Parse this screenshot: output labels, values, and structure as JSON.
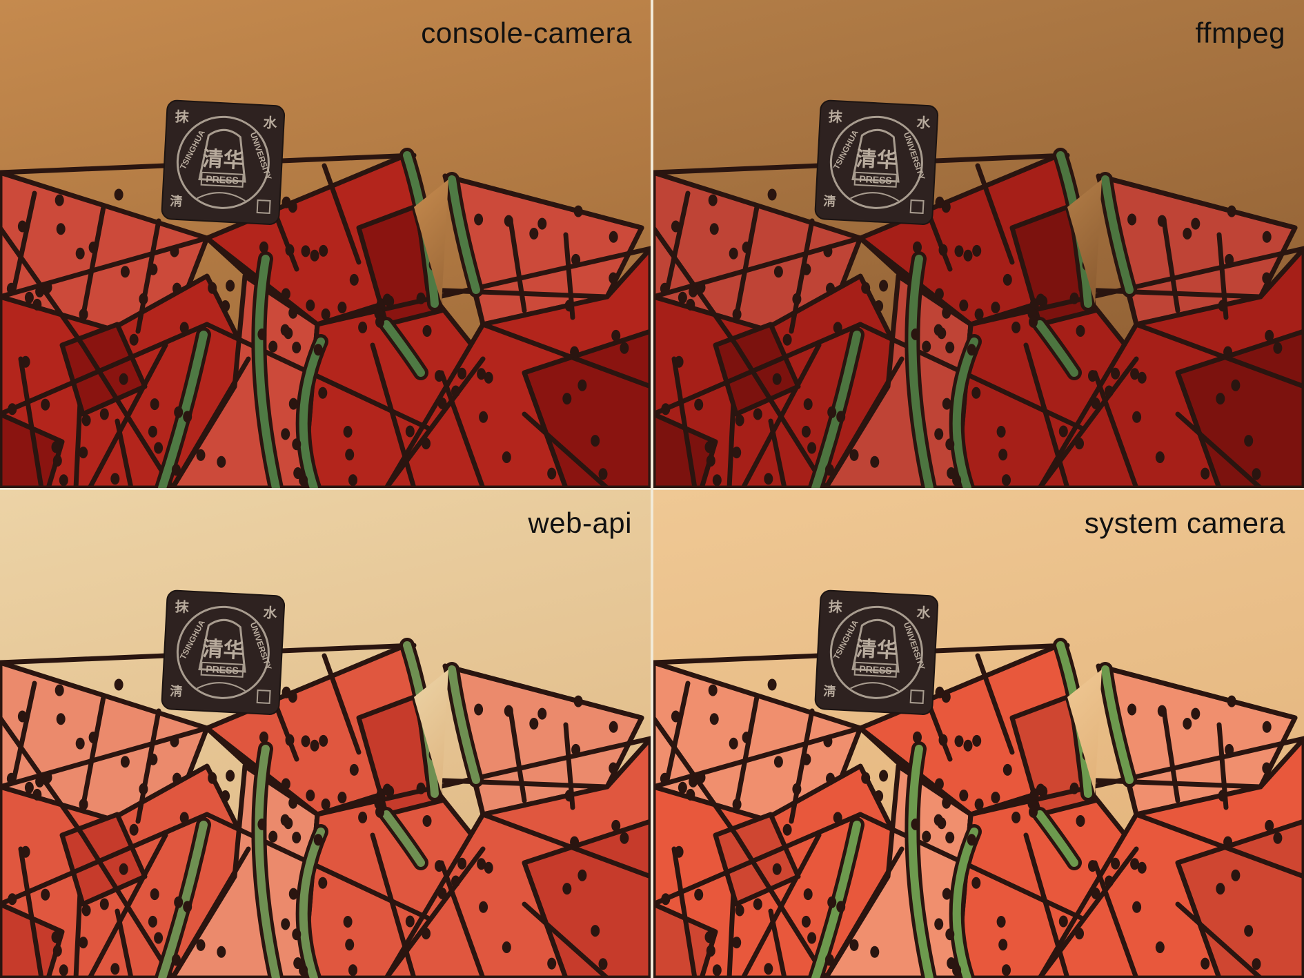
{
  "panels": [
    {
      "label": "console-camera",
      "colors": {
        "bg1": "#c58a4e",
        "bg2": "#a06c3a",
        "red": "#b3251c",
        "light": "#cc4a3a",
        "dark": "#8a1410",
        "rind": "#4f7a44",
        "ink": "#2a1510"
      }
    },
    {
      "label": "ffmpeg",
      "colors": {
        "bg1": "#b27d47",
        "bg2": "#8f5f33",
        "red": "#a61f18",
        "light": "#bf4436",
        "dark": "#7c120e",
        "rind": "#4d7540",
        "ink": "#2a1510"
      }
    },
    {
      "label": "web-api",
      "colors": {
        "bg1": "#ecd3a6",
        "bg2": "#e0b985",
        "red": "#e0573f",
        "light": "#eb8a6c",
        "dark": "#c63b2b",
        "rind": "#6f9052",
        "ink": "#2a1510"
      }
    },
    {
      "label": "system camera",
      "colors": {
        "bg1": "#efc894",
        "bg2": "#e3b47c",
        "red": "#e8583c",
        "light": "#f08f6e",
        "dark": "#cf4631",
        "rind": "#6d9a4e",
        "ink": "#2a1510"
      }
    }
  ],
  "stamp": {
    "top_left_char": "抹",
    "top_right_char": "水",
    "bottom_left_char": "淸",
    "center_chars": "清华",
    "banner": "PRESS",
    "arc_left": "TSINGHUA",
    "arc_right": "UNIVERSITY"
  },
  "icons": {
    "stamp": "publisher-seal-icon"
  }
}
